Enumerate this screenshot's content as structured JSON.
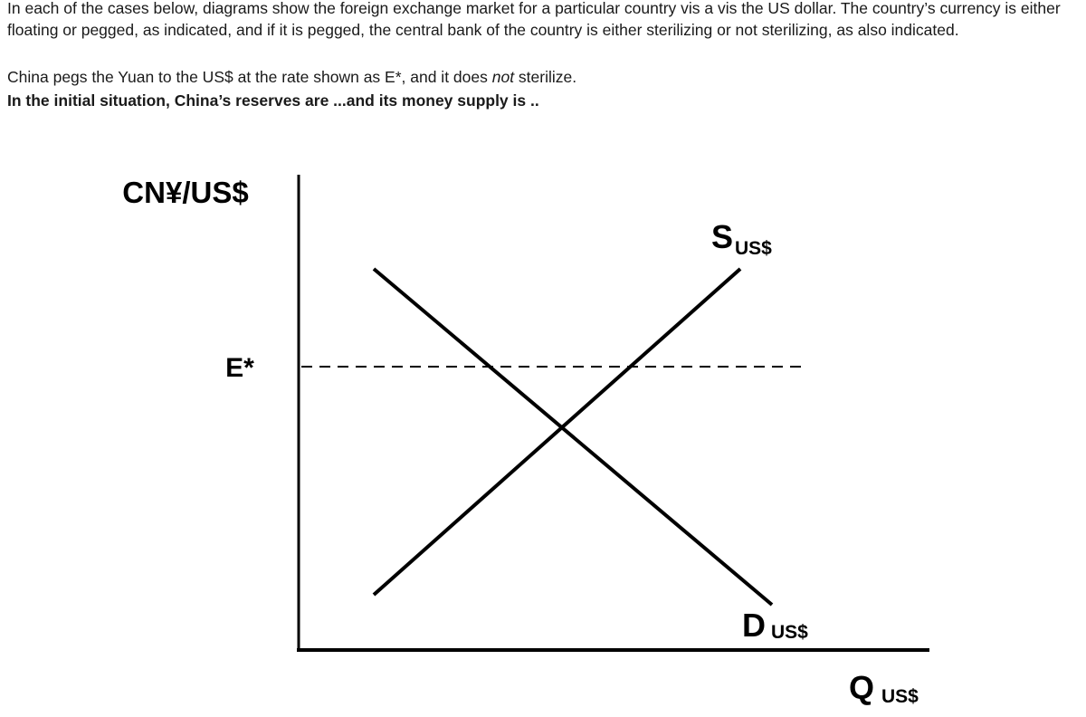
{
  "document": {
    "intro": "In each of the cases below, diagrams show the foreign exchange market for a particular country vis a vis the US dollar. The country’s currency is either floating or pegged, as indicated, and if it is pegged, the central bank of the country is either sterilizing or not sterilizing, as also indicated.",
    "case": {
      "before": "China pegs the Yuan to the US$ at the rate shown as E*, and it does ",
      "emphasis": "not",
      "after": " sterilize."
    },
    "question": "In the initial situation, China’s reserves are ...and its money supply is ..",
    "diagram": {
      "y_axis_label": "CN¥/US$",
      "peg_label": "E*",
      "supply_label": {
        "letter": "S",
        "subscript": "US$"
      },
      "demand_label": {
        "letter": "D",
        "subscript": "US$"
      },
      "x_axis_label": {
        "letter": "Q",
        "subscript": "US$"
      }
    }
  }
}
